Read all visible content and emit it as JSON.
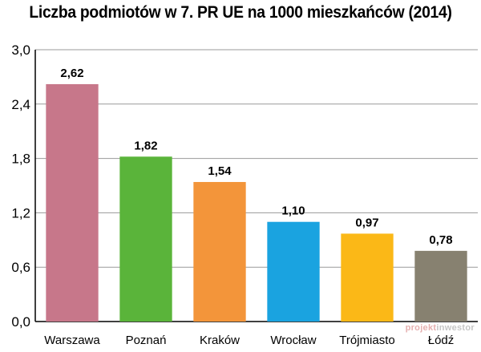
{
  "chart_data": {
    "type": "bar",
    "title": "Liczba podmiotów w 7. PR UE na 1000 mieszkańców (2014)",
    "xlabel": "",
    "ylabel": "",
    "categories": [
      "Warszawa",
      "Poznań",
      "Kraków",
      "Wrocław",
      "Trójmiasto",
      "Łódź"
    ],
    "values": [
      2.62,
      1.82,
      1.54,
      1.1,
      0.97,
      0.78
    ],
    "value_labels": [
      "2,62",
      "1,82",
      "1,54",
      "1,10",
      "0,97",
      "0,78"
    ],
    "colors": [
      "#c7778a",
      "#5ab43a",
      "#f3953a",
      "#1aa3e0",
      "#fbb817",
      "#878170"
    ],
    "ylim": [
      0,
      3.0
    ],
    "yticks": [
      0,
      0.6,
      1.2,
      1.8,
      2.4,
      3.0
    ],
    "ytick_labels": [
      "0,0",
      "0,6",
      "1,2",
      "1,8",
      "2,4",
      "3,0"
    ],
    "grid": true,
    "legend": "none"
  },
  "watermark": {
    "part1": "projekt",
    "part2": "inwestor"
  }
}
